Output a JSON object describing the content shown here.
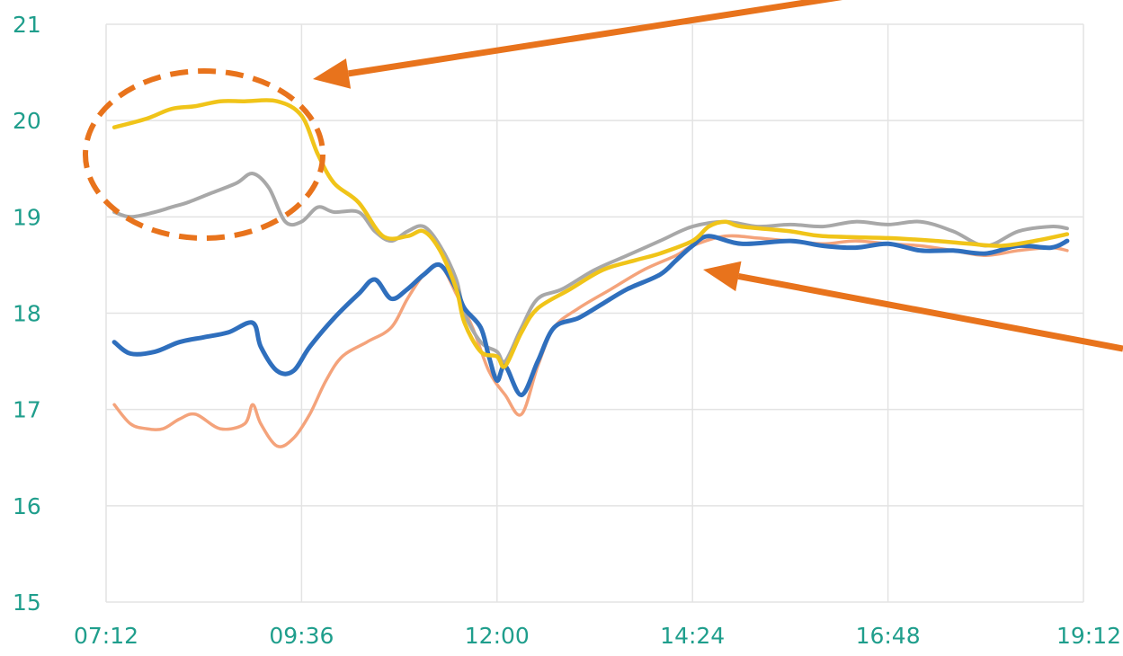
{
  "chart_data": {
    "type": "line",
    "title": "",
    "xlabel": "",
    "ylabel": "",
    "xlim": [
      "07:12",
      "19:12"
    ],
    "ylim": [
      15,
      21
    ],
    "x_ticks": [
      "07:12",
      "09:36",
      "12:00",
      "14:24",
      "16:48",
      "19:12"
    ],
    "y_ticks": [
      21,
      20,
      19,
      18,
      17,
      16,
      15
    ],
    "grid": true,
    "legend": "none",
    "colors": {
      "tick_label": "#1f9e8c",
      "grid": "#e3e3e3",
      "annotation": "#e8731c",
      "series": [
        "#f0c419",
        "#a8a8a8",
        "#2f6fbd",
        "#f4a37b"
      ]
    },
    "series": [
      {
        "color": "#f0c419",
        "points": [
          [
            "07:18",
            19.93
          ],
          [
            "07:42",
            20.02
          ],
          [
            "08:00",
            20.12
          ],
          [
            "08:18",
            20.15
          ],
          [
            "08:36",
            20.2
          ],
          [
            "08:54",
            20.2
          ],
          [
            "09:18",
            20.2
          ],
          [
            "09:36",
            20.05
          ],
          [
            "09:48",
            19.65
          ],
          [
            "10:00",
            19.35
          ],
          [
            "10:18",
            19.15
          ],
          [
            "10:36",
            18.8
          ],
          [
            "10:54",
            18.8
          ],
          [
            "11:06",
            18.85
          ],
          [
            "11:18",
            18.65
          ],
          [
            "11:30",
            18.25
          ],
          [
            "11:36",
            17.9
          ],
          [
            "11:48",
            17.6
          ],
          [
            "12:00",
            17.55
          ],
          [
            "12:06",
            17.45
          ],
          [
            "12:18",
            17.8
          ],
          [
            "12:30",
            18.05
          ],
          [
            "12:54",
            18.25
          ],
          [
            "13:18",
            18.45
          ],
          [
            "13:42",
            18.55
          ],
          [
            "14:00",
            18.62
          ],
          [
            "14:24",
            18.75
          ],
          [
            "14:36",
            18.9
          ],
          [
            "14:48",
            18.95
          ],
          [
            "15:00",
            18.9
          ],
          [
            "15:36",
            18.85
          ],
          [
            "16:00",
            18.8
          ],
          [
            "16:48",
            18.78
          ],
          [
            "17:24",
            18.75
          ],
          [
            "17:48",
            18.72
          ],
          [
            "18:12",
            18.7
          ],
          [
            "18:36",
            18.75
          ],
          [
            "19:00",
            18.82
          ]
        ]
      },
      {
        "color": "#a8a8a8",
        "points": [
          [
            "07:18",
            19.05
          ],
          [
            "07:30",
            19.0
          ],
          [
            "07:48",
            19.05
          ],
          [
            "08:00",
            19.1
          ],
          [
            "08:12",
            19.15
          ],
          [
            "08:30",
            19.25
          ],
          [
            "08:48",
            19.35
          ],
          [
            "09:00",
            19.45
          ],
          [
            "09:12",
            19.3
          ],
          [
            "09:24",
            18.95
          ],
          [
            "09:36",
            18.95
          ],
          [
            "09:48",
            19.1
          ],
          [
            "10:00",
            19.05
          ],
          [
            "10:18",
            19.05
          ],
          [
            "10:30",
            18.85
          ],
          [
            "10:42",
            18.75
          ],
          [
            "10:54",
            18.85
          ],
          [
            "11:06",
            18.9
          ],
          [
            "11:18",
            18.7
          ],
          [
            "11:30",
            18.35
          ],
          [
            "11:36",
            18.0
          ],
          [
            "11:48",
            17.7
          ],
          [
            "12:00",
            17.6
          ],
          [
            "12:06",
            17.5
          ],
          [
            "12:18",
            17.85
          ],
          [
            "12:30",
            18.15
          ],
          [
            "12:48",
            18.25
          ],
          [
            "13:12",
            18.45
          ],
          [
            "13:36",
            18.6
          ],
          [
            "14:00",
            18.75
          ],
          [
            "14:24",
            18.9
          ],
          [
            "14:48",
            18.95
          ],
          [
            "15:12",
            18.9
          ],
          [
            "15:36",
            18.92
          ],
          [
            "16:00",
            18.9
          ],
          [
            "16:24",
            18.95
          ],
          [
            "16:48",
            18.92
          ],
          [
            "17:12",
            18.95
          ],
          [
            "17:36",
            18.85
          ],
          [
            "18:00",
            18.7
          ],
          [
            "18:24",
            18.85
          ],
          [
            "18:48",
            18.9
          ],
          [
            "19:00",
            18.88
          ]
        ]
      },
      {
        "color": "#2f6fbd",
        "points": [
          [
            "07:18",
            17.7
          ],
          [
            "07:30",
            17.58
          ],
          [
            "07:48",
            17.6
          ],
          [
            "08:06",
            17.7
          ],
          [
            "08:24",
            17.75
          ],
          [
            "08:42",
            17.8
          ],
          [
            "09:00",
            17.9
          ],
          [
            "09:06",
            17.65
          ],
          [
            "09:18",
            17.4
          ],
          [
            "09:30",
            17.4
          ],
          [
            "09:42",
            17.65
          ],
          [
            "10:00",
            17.95
          ],
          [
            "10:18",
            18.2
          ],
          [
            "10:30",
            18.35
          ],
          [
            "10:42",
            18.15
          ],
          [
            "10:54",
            18.25
          ],
          [
            "11:06",
            18.4
          ],
          [
            "11:18",
            18.5
          ],
          [
            "11:30",
            18.25
          ],
          [
            "11:36",
            18.05
          ],
          [
            "11:48",
            17.85
          ],
          [
            "11:54",
            17.55
          ],
          [
            "12:00",
            17.3
          ],
          [
            "12:06",
            17.45
          ],
          [
            "12:18",
            17.15
          ],
          [
            "12:30",
            17.5
          ],
          [
            "12:42",
            17.85
          ],
          [
            "13:00",
            17.95
          ],
          [
            "13:18",
            18.1
          ],
          [
            "13:36",
            18.25
          ],
          [
            "14:00",
            18.4
          ],
          [
            "14:12",
            18.55
          ],
          [
            "14:24",
            18.7
          ],
          [
            "14:36",
            18.8
          ],
          [
            "15:00",
            18.72
          ],
          [
            "15:36",
            18.75
          ],
          [
            "16:00",
            18.7
          ],
          [
            "16:24",
            18.68
          ],
          [
            "16:48",
            18.72
          ],
          [
            "17:12",
            18.65
          ],
          [
            "17:36",
            18.65
          ],
          [
            "18:00",
            18.62
          ],
          [
            "18:24",
            18.7
          ],
          [
            "18:48",
            18.68
          ],
          [
            "19:00",
            18.75
          ]
        ]
      },
      {
        "color": "#f4a37b",
        "points": [
          [
            "07:18",
            17.05
          ],
          [
            "07:30",
            16.85
          ],
          [
            "07:42",
            16.8
          ],
          [
            "07:54",
            16.8
          ],
          [
            "08:06",
            16.9
          ],
          [
            "08:18",
            16.95
          ],
          [
            "08:36",
            16.8
          ],
          [
            "08:54",
            16.85
          ],
          [
            "09:00",
            17.05
          ],
          [
            "09:06",
            16.85
          ],
          [
            "09:18",
            16.62
          ],
          [
            "09:30",
            16.7
          ],
          [
            "09:42",
            16.95
          ],
          [
            "09:54",
            17.3
          ],
          [
            "10:06",
            17.55
          ],
          [
            "10:24",
            17.7
          ],
          [
            "10:42",
            17.85
          ],
          [
            "10:54",
            18.15
          ],
          [
            "11:06",
            18.4
          ],
          [
            "11:18",
            18.5
          ],
          [
            "11:30",
            18.2
          ],
          [
            "11:42",
            17.85
          ],
          [
            "11:54",
            17.4
          ],
          [
            "12:06",
            17.15
          ],
          [
            "12:18",
            16.95
          ],
          [
            "12:30",
            17.45
          ],
          [
            "12:42",
            17.85
          ],
          [
            "13:00",
            18.05
          ],
          [
            "13:24",
            18.25
          ],
          [
            "13:48",
            18.45
          ],
          [
            "14:12",
            18.6
          ],
          [
            "14:24",
            18.7
          ],
          [
            "14:48",
            18.8
          ],
          [
            "15:12",
            18.78
          ],
          [
            "15:36",
            18.75
          ],
          [
            "16:00",
            18.72
          ],
          [
            "16:24",
            18.75
          ],
          [
            "16:48",
            18.72
          ],
          [
            "17:12",
            18.7
          ],
          [
            "17:36",
            18.65
          ],
          [
            "18:00",
            18.6
          ],
          [
            "18:24",
            18.65
          ],
          [
            "18:48",
            18.68
          ],
          [
            "19:00",
            18.65
          ]
        ]
      }
    ],
    "annotations": [
      {
        "type": "dashed-ellipse",
        "around": "series values between 07:12 and 09:36"
      },
      {
        "type": "arrow",
        "points_to": [
          "09:36",
          20.6
        ]
      },
      {
        "type": "arrow",
        "points_to": [
          "14:24",
          18.5
        ]
      }
    ]
  }
}
